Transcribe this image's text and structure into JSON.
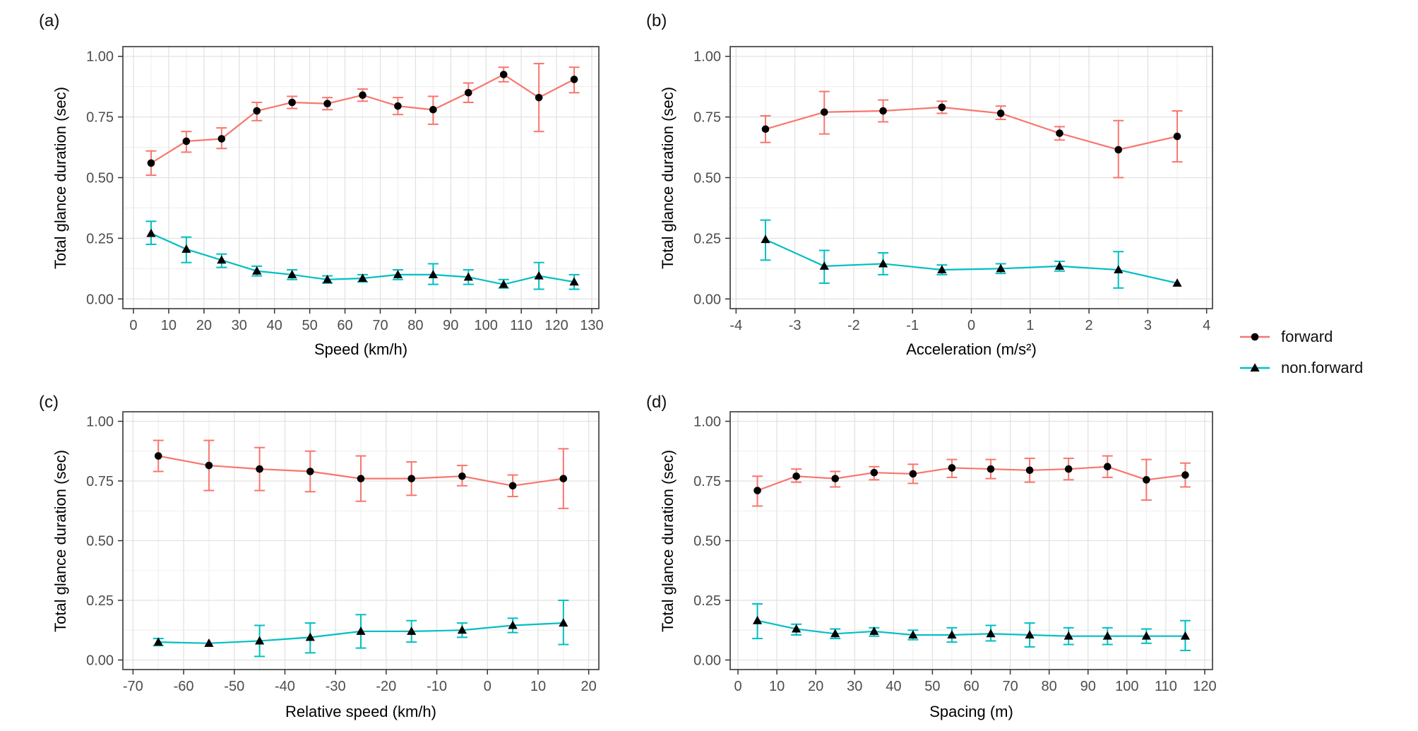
{
  "figure": {
    "background": "#ffffff",
    "ylabel": "Total glance duration (sec)",
    "legend": {
      "position": "right",
      "items": [
        {
          "label": "forward",
          "color": "#F8766D",
          "marker": "circle"
        },
        {
          "label": "non.forward",
          "color": "#00BFC4",
          "marker": "triangle"
        }
      ]
    },
    "colors": {
      "forward": "#F8766D",
      "non_forward": "#00BFC4",
      "marker": "#000000",
      "grid_major": "#E2E2E2",
      "grid_minor": "#EFEFEF",
      "panel_border": "#4D4D4D",
      "tick_label": "#4D4D4D",
      "axis_title": "#000000"
    }
  },
  "chart_data": [
    {
      "panel": "(a)",
      "type": "line",
      "xlabel": "Speed (km/h)",
      "ylabel": "Total glance duration (sec)",
      "x": [
        5,
        15,
        25,
        35,
        45,
        55,
        65,
        75,
        85,
        95,
        105,
        115,
        125
      ],
      "xticks": [
        0,
        10,
        20,
        30,
        40,
        50,
        60,
        70,
        80,
        90,
        100,
        110,
        120,
        130
      ],
      "yticks": [
        0,
        0.25,
        0.5,
        0.75,
        1
      ],
      "ytick_labels": [
        "0.00",
        "0.25",
        "0.50",
        "0.75",
        "1.00"
      ],
      "xlim": [
        -3,
        132
      ],
      "ylim": [
        -0.04,
        1.04
      ],
      "grid": true,
      "series": [
        {
          "name": "forward",
          "color": "#F8766D",
          "marker": "circle",
          "values": [
            0.56,
            0.65,
            0.66,
            0.775,
            0.81,
            0.805,
            0.84,
            0.795,
            0.78,
            0.85,
            0.925,
            0.83,
            0.905
          ],
          "lower": [
            0.51,
            0.605,
            0.62,
            0.735,
            0.785,
            0.78,
            0.815,
            0.76,
            0.72,
            0.81,
            0.895,
            0.69,
            0.85
          ],
          "upper": [
            0.61,
            0.69,
            0.705,
            0.81,
            0.835,
            0.83,
            0.865,
            0.83,
            0.835,
            0.89,
            0.955,
            0.97,
            0.955
          ]
        },
        {
          "name": "non.forward",
          "color": "#00BFC4",
          "marker": "triangle",
          "values": [
            0.27,
            0.205,
            0.16,
            0.115,
            0.1,
            0.08,
            0.085,
            0.1,
            0.1,
            0.09,
            0.06,
            0.095,
            0.07
          ],
          "lower": [
            0.225,
            0.15,
            0.13,
            0.095,
            0.08,
            0.065,
            0.07,
            0.08,
            0.06,
            0.06,
            0.045,
            0.04,
            0.04
          ],
          "upper": [
            0.32,
            0.255,
            0.185,
            0.135,
            0.12,
            0.095,
            0.1,
            0.12,
            0.145,
            0.12,
            0.08,
            0.15,
            0.1
          ]
        }
      ]
    },
    {
      "panel": "(b)",
      "type": "line",
      "xlabel": "Acceleration (m/s²)",
      "ylabel": "Total glance duration (sec)",
      "x": [
        -3.5,
        -2.5,
        -1.5,
        -0.5,
        0.5,
        1.5,
        2.5,
        3.5
      ],
      "xticks": [
        -4,
        -3,
        -2,
        -1,
        0,
        1,
        2,
        3,
        4
      ],
      "yticks": [
        0,
        0.25,
        0.5,
        0.75,
        1
      ],
      "ytick_labels": [
        "0.00",
        "0.25",
        "0.50",
        "0.75",
        "1.00"
      ],
      "xlim": [
        -4.1,
        4.1
      ],
      "ylim": [
        -0.04,
        1.04
      ],
      "grid": true,
      "series": [
        {
          "name": "forward",
          "color": "#F8766D",
          "marker": "circle",
          "values": [
            0.7,
            0.77,
            0.775,
            0.79,
            0.765,
            0.683,
            0.615,
            0.67
          ],
          "lower": [
            0.645,
            0.68,
            0.73,
            0.765,
            0.74,
            0.655,
            0.5,
            0.565
          ],
          "upper": [
            0.755,
            0.855,
            0.82,
            0.815,
            0.795,
            0.71,
            0.735,
            0.775
          ]
        },
        {
          "name": "non.forward",
          "color": "#00BFC4",
          "marker": "triangle",
          "values": [
            0.245,
            0.135,
            0.145,
            0.12,
            0.125,
            0.135,
            0.12,
            0.065
          ],
          "lower": [
            0.16,
            0.065,
            0.1,
            0.1,
            0.105,
            0.115,
            0.045,
            0.065
          ],
          "upper": [
            0.325,
            0.2,
            0.19,
            0.14,
            0.145,
            0.155,
            0.195,
            0.065
          ]
        }
      ]
    },
    {
      "panel": "(c)",
      "type": "line",
      "xlabel": "Relative speed (km/h)",
      "ylabel": "Total glance duration (sec)",
      "x": [
        -65,
        -55,
        -45,
        -35,
        -25,
        -15,
        -5,
        5,
        15
      ],
      "xticks": [
        -70,
        -60,
        -50,
        -40,
        -30,
        -20,
        -10,
        0,
        10,
        20
      ],
      "yticks": [
        0,
        0.25,
        0.5,
        0.75,
        1
      ],
      "ytick_labels": [
        "0.00",
        "0.25",
        "0.50",
        "0.75",
        "1.00"
      ],
      "xlim": [
        -72,
        22
      ],
      "ylim": [
        -0.04,
        1.04
      ],
      "grid": true,
      "series": [
        {
          "name": "forward",
          "color": "#F8766D",
          "marker": "circle",
          "values": [
            0.855,
            0.815,
            0.8,
            0.79,
            0.76,
            0.76,
            0.77,
            0.73,
            0.76
          ],
          "lower": [
            0.79,
            0.71,
            0.71,
            0.705,
            0.665,
            0.69,
            0.73,
            0.685,
            0.635
          ],
          "upper": [
            0.92,
            0.92,
            0.89,
            0.875,
            0.855,
            0.83,
            0.815,
            0.775,
            0.885
          ]
        },
        {
          "name": "non.forward",
          "color": "#00BFC4",
          "marker": "triangle",
          "values": [
            0.075,
            0.07,
            0.08,
            0.095,
            0.12,
            0.12,
            0.125,
            0.145,
            0.155
          ],
          "lower": [
            0.06,
            0.07,
            0.015,
            0.03,
            0.05,
            0.075,
            0.095,
            0.115,
            0.065
          ],
          "upper": [
            0.09,
            0.07,
            0.145,
            0.155,
            0.19,
            0.165,
            0.155,
            0.175,
            0.25
          ]
        }
      ]
    },
    {
      "panel": "(d)",
      "type": "line",
      "xlabel": "Spacing (m)",
      "ylabel": "Total glance duration (sec)",
      "x": [
        5,
        15,
        25,
        35,
        45,
        55,
        65,
        75,
        85,
        95,
        105,
        115
      ],
      "xticks": [
        0,
        10,
        20,
        30,
        40,
        50,
        60,
        70,
        80,
        90,
        100,
        110,
        120
      ],
      "yticks": [
        0,
        0.25,
        0.5,
        0.75,
        1
      ],
      "ytick_labels": [
        "0.00",
        "0.25",
        "0.50",
        "0.75",
        "1.00"
      ],
      "xlim": [
        -2,
        122
      ],
      "ylim": [
        -0.04,
        1.04
      ],
      "grid": true,
      "series": [
        {
          "name": "forward",
          "color": "#F8766D",
          "marker": "circle",
          "values": [
            0.71,
            0.77,
            0.76,
            0.785,
            0.78,
            0.805,
            0.8,
            0.795,
            0.8,
            0.81,
            0.755,
            0.775
          ],
          "lower": [
            0.645,
            0.745,
            0.725,
            0.755,
            0.74,
            0.765,
            0.76,
            0.745,
            0.755,
            0.765,
            0.67,
            0.725
          ],
          "upper": [
            0.77,
            0.8,
            0.79,
            0.81,
            0.82,
            0.84,
            0.84,
            0.845,
            0.845,
            0.855,
            0.84,
            0.825
          ]
        },
        {
          "name": "non.forward",
          "color": "#00BFC4",
          "marker": "triangle",
          "values": [
            0.165,
            0.13,
            0.11,
            0.12,
            0.105,
            0.105,
            0.11,
            0.105,
            0.1,
            0.1,
            0.1,
            0.1
          ],
          "lower": [
            0.09,
            0.105,
            0.09,
            0.1,
            0.085,
            0.075,
            0.08,
            0.055,
            0.065,
            0.065,
            0.07,
            0.04
          ],
          "upper": [
            0.235,
            0.15,
            0.13,
            0.135,
            0.125,
            0.135,
            0.145,
            0.155,
            0.135,
            0.135,
            0.13,
            0.165
          ]
        }
      ]
    }
  ]
}
